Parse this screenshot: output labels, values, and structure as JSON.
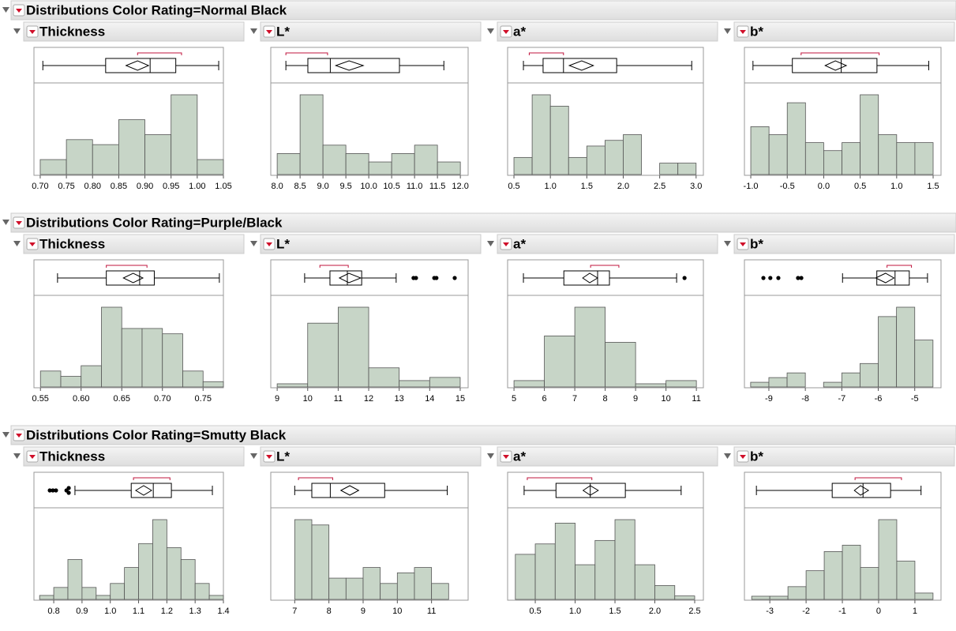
{
  "sections": [
    {
      "title": "Distributions Color Rating=Normal Black"
    },
    {
      "title": "Distributions Color Rating=Purple/Black"
    },
    {
      "title": "Distributions Color Rating=Smutty Black"
    }
  ],
  "chart_data": [
    {
      "type": "histogram",
      "title": "Thickness",
      "color": "#c7d5c7",
      "bins": [
        0.7,
        0.75,
        0.8,
        0.85,
        0.9,
        0.95,
        1.0,
        1.05
      ],
      "values": [
        3,
        7,
        6,
        11,
        8,
        16,
        3
      ],
      "xlim": [
        0.688,
        1.05
      ],
      "xticks": [
        {
          "value": 0.7,
          "label": "0.70"
        },
        0.75,
        {
          "value": 0.8,
          "label": "0.80"
        },
        0.85,
        {
          "value": 0.9,
          "label": "0.90"
        },
        0.95,
        {
          "value": 1,
          "label": "1.00"
        },
        1.05
      ],
      "boxplot": {
        "min": 0.705,
        "q1": 0.825,
        "median": 0.91,
        "q3": 0.959,
        "max": 1.041,
        "mean": 0.886,
        "ci": [
          0.864,
          0.907
        ],
        "shortest_half": [
          0.886,
          0.97
        ],
        "outliers": []
      }
    },
    {
      "type": "histogram",
      "title": "L*",
      "color": "#c7d5c7",
      "bins": [
        8,
        8.5,
        9,
        9.5,
        10,
        10.5,
        11,
        11.5,
        12
      ],
      "values": [
        5,
        19,
        7,
        5,
        3,
        5,
        7,
        3
      ],
      "xlim": [
        7.86,
        12.17
      ],
      "xticks": [
        {
          "value": 8,
          "label": "8.0"
        },
        8.5,
        {
          "value": 9,
          "label": "9.0"
        },
        9.5,
        {
          "value": 10,
          "label": "10.0"
        },
        10.5,
        {
          "value": 11,
          "label": "11.0"
        },
        11.5,
        {
          "value": 12,
          "label": "12.0"
        }
      ],
      "boxplot": {
        "min": 8.19,
        "q1": 8.67,
        "median": 9.16,
        "q3": 10.67,
        "max": 11.64,
        "mean": 9.57,
        "ci": [
          9.28,
          9.88
        ],
        "shortest_half": [
          8.19,
          9.1
        ],
        "outliers": []
      }
    },
    {
      "type": "histogram",
      "title": "a*",
      "color": "#c7d5c7",
      "bins": [
        0.5,
        0.75,
        1,
        1.25,
        1.5,
        1.75,
        2,
        2.25,
        2.5,
        2.75,
        3
      ],
      "values": [
        3,
        14,
        12,
        3,
        5,
        6,
        7,
        0,
        2,
        2
      ],
      "xlim": [
        0.413,
        3.1
      ],
      "xticks": [
        0.5,
        {
          "value": 1,
          "label": "1.0"
        },
        1.5,
        {
          "value": 2,
          "label": "2.0"
        },
        2.5,
        {
          "value": 3,
          "label": "3.0"
        }
      ],
      "boxplot": {
        "min": 0.63,
        "q1": 0.9,
        "median": 1.18,
        "q3": 1.91,
        "max": 2.94,
        "mean": 1.43,
        "ci": [
          1.26,
          1.59
        ],
        "shortest_half": [
          0.71,
          1.18
        ],
        "outliers": []
      }
    },
    {
      "type": "histogram",
      "title": "b*",
      "color": "#c7d5c7",
      "bins": [
        -1,
        -0.75,
        -0.5,
        -0.25,
        0,
        0.25,
        0.5,
        0.75,
        1,
        1.25,
        1.5
      ],
      "values": [
        6,
        5,
        9,
        4,
        3,
        4,
        10,
        5,
        4,
        4
      ],
      "xlim": [
        -1.087,
        1.608
      ],
      "xticks": [
        {
          "value": -1,
          "label": "-1.0"
        },
        -0.5,
        {
          "value": 0,
          "label": "0.0"
        },
        0.5,
        {
          "value": 1,
          "label": "1.0"
        },
        1.5
      ],
      "boxplot": {
        "min": -0.97,
        "q1": -0.43,
        "median": 0.24,
        "q3": 0.73,
        "max": 1.44,
        "mean": 0.16,
        "ci": [
          0.02,
          0.31
        ],
        "shortest_half": [
          -0.31,
          0.76
        ],
        "outliers": []
      }
    },
    {
      "type": "histogram",
      "title": "Thickness",
      "color": "#c7d5c7",
      "bins": [
        0.55,
        0.575,
        0.6,
        0.625,
        0.65,
        0.675,
        0.7,
        0.725,
        0.75,
        0.775
      ],
      "values": [
        3,
        2,
        4,
        15,
        11,
        11,
        10,
        3,
        1
      ],
      "xlim": [
        0.542,
        0.775
      ],
      "xticks": [
        0.55,
        {
          "value": 0.6,
          "label": "0.60"
        },
        0.65,
        {
          "value": 0.7,
          "label": "0.70"
        },
        0.75
      ],
      "boxplot": {
        "min": 0.571,
        "q1": 0.631,
        "median": 0.672,
        "q3": 0.69,
        "max": 0.77,
        "mean": 0.664,
        "ci": [
          0.652,
          0.676
        ],
        "shortest_half": [
          0.631,
          0.681
        ],
        "outliers": []
      }
    },
    {
      "type": "histogram",
      "title": "L*",
      "color": "#c7d5c7",
      "bins": [
        9,
        10,
        11,
        12,
        13,
        14,
        15
      ],
      "values": [
        1,
        20,
        25,
        6,
        2,
        3
      ],
      "xlim": [
        8.79,
        15.26
      ],
      "xticks": [
        9,
        10,
        11,
        12,
        13,
        14,
        15
      ],
      "boxplot": {
        "min": 9.9,
        "q1": 10.73,
        "median": 11.3,
        "q3": 11.77,
        "max": 12.9,
        "mean": 11.35,
        "ci": [
          11.04,
          11.74
        ],
        "shortest_half": [
          10.4,
          11.33
        ],
        "outliers": [
          13.47,
          13.55,
          14.15,
          14.22,
          14.82
        ]
      }
    },
    {
      "type": "histogram",
      "title": "a*",
      "color": "#c7d5c7",
      "bins": [
        5,
        6,
        7,
        8,
        9,
        10,
        11
      ],
      "values": [
        2,
        16,
        25,
        14,
        1,
        2
      ],
      "xlim": [
        4.79,
        11.23
      ],
      "xticks": [
        5,
        6,
        7,
        8,
        9,
        10,
        11
      ],
      "boxplot": {
        "min": 5.31,
        "q1": 6.64,
        "median": 7.75,
        "q3": 8.14,
        "max": 10.35,
        "mean": 7.49,
        "ci": [
          7.26,
          7.75
        ],
        "shortest_half": [
          7.52,
          8.45
        ],
        "outliers": [
          10.61
        ]
      }
    },
    {
      "type": "histogram",
      "title": "b*",
      "color": "#c7d5c7",
      "bins": [
        -9.5,
        -9,
        -8.5,
        -8,
        -7.5,
        -7,
        -6.5,
        -6,
        -5.5,
        -5,
        -4.5
      ],
      "values": [
        1,
        2,
        3,
        0,
        1,
        3,
        5,
        15,
        17,
        10
      ],
      "xlim": [
        -9.67,
        -4.28
      ],
      "xticks": [
        -9,
        -8,
        -7,
        -6,
        -5
      ],
      "boxplot": {
        "min": -6.98,
        "q1": -6.04,
        "median": -5.54,
        "q3": -5.15,
        "max": -4.65,
        "mean": -5.8,
        "ci": [
          -6.07,
          -5.57
        ],
        "shortest_half": [
          -5.76,
          -5.09
        ],
        "outliers": [
          -9.15,
          -8.96,
          -8.74,
          -8.2,
          -8.11
        ]
      }
    },
    {
      "type": "histogram",
      "title": "Thickness",
      "color": "#c7d5c7",
      "bins": [
        0.75,
        0.8,
        0.85,
        0.9,
        0.95,
        1,
        1.05,
        1.1,
        1.15,
        1.2,
        1.25,
        1.3,
        1.35,
        1.4
      ],
      "values": [
        1,
        3,
        10,
        3,
        1,
        4,
        8,
        14,
        20,
        13,
        10,
        4,
        1
      ],
      "xlim": [
        0.73,
        1.4
      ],
      "xticks": [
        0.8,
        0.9,
        {
          "value": 1,
          "label": "1.0"
        },
        1.1,
        1.2,
        1.3,
        1.4
      ],
      "boxplot": {
        "min": 0.875,
        "q1": 1.074,
        "median": 1.152,
        "q3": 1.216,
        "max": 1.361,
        "mean": 1.118,
        "ci": [
          1.09,
          1.146
        ],
        "shortest_half": [
          1.082,
          1.211
        ],
        "outliers": [
          0.786,
          0.797,
          0.808,
          0.845,
          0.853,
          0.853
        ]
      }
    },
    {
      "type": "histogram",
      "title": "L*",
      "color": "#c7d5c7",
      "bins": [
        7,
        7.5,
        8,
        8.5,
        9,
        9.5,
        10,
        10.5,
        11,
        11.5
      ],
      "values": [
        15,
        14,
        4,
        4,
        6,
        3,
        5,
        6,
        3
      ],
      "xlim": [
        6.3,
        12.07
      ],
      "xticks": [
        7,
        8,
        9,
        10,
        11
      ],
      "boxplot": {
        "min": 7.0,
        "q1": 7.5,
        "median": 8.04,
        "q3": 9.63,
        "max": 11.46,
        "mean": 8.61,
        "ci": [
          8.35,
          8.87
        ],
        "shortest_half": [
          7.11,
          8.11
        ],
        "outliers": []
      }
    },
    {
      "type": "histogram",
      "title": "a*",
      "color": "#c7d5c7",
      "bins": [
        0.25,
        0.5,
        0.75,
        1,
        1.25,
        1.5,
        1.75,
        2,
        2.25,
        2.5
      ],
      "values": [
        13,
        16,
        22,
        10,
        17,
        23,
        10,
        4,
        1
      ],
      "xlim": [
        0.153,
        2.609
      ],
      "xticks": [
        0.5,
        {
          "value": 1,
          "label": "1.0"
        },
        1.5,
        {
          "value": 2,
          "label": "2.0"
        },
        2.5
      ],
      "boxplot": {
        "min": 0.36,
        "q1": 0.76,
        "median": 1.19,
        "q3": 1.63,
        "max": 2.33,
        "mean": 1.19,
        "ci": [
          1.1,
          1.29
        ],
        "shortest_half": [
          0.4,
          1.21
        ],
        "outliers": []
      }
    },
    {
      "type": "histogram",
      "title": "b*",
      "color": "#c7d5c7",
      "bins": [
        -3.5,
        -3,
        -2.5,
        -2,
        -1.5,
        -1,
        -0.5,
        0,
        0.5,
        1,
        1.5
      ],
      "values": [
        1,
        1,
        4,
        9,
        15,
        17,
        10,
        25,
        12,
        2
      ],
      "xlim": [
        -3.7,
        1.72
      ],
      "xticks": [
        -3,
        -2,
        -1,
        0,
        1
      ],
      "boxplot": {
        "min": -3.37,
        "q1": -1.28,
        "median": -0.43,
        "q3": 0.33,
        "max": 1.17,
        "mean": -0.5,
        "ci": [
          -0.67,
          -0.28
        ],
        "shortest_half": [
          -0.65,
          0.63
        ],
        "outliers": []
      }
    }
  ]
}
